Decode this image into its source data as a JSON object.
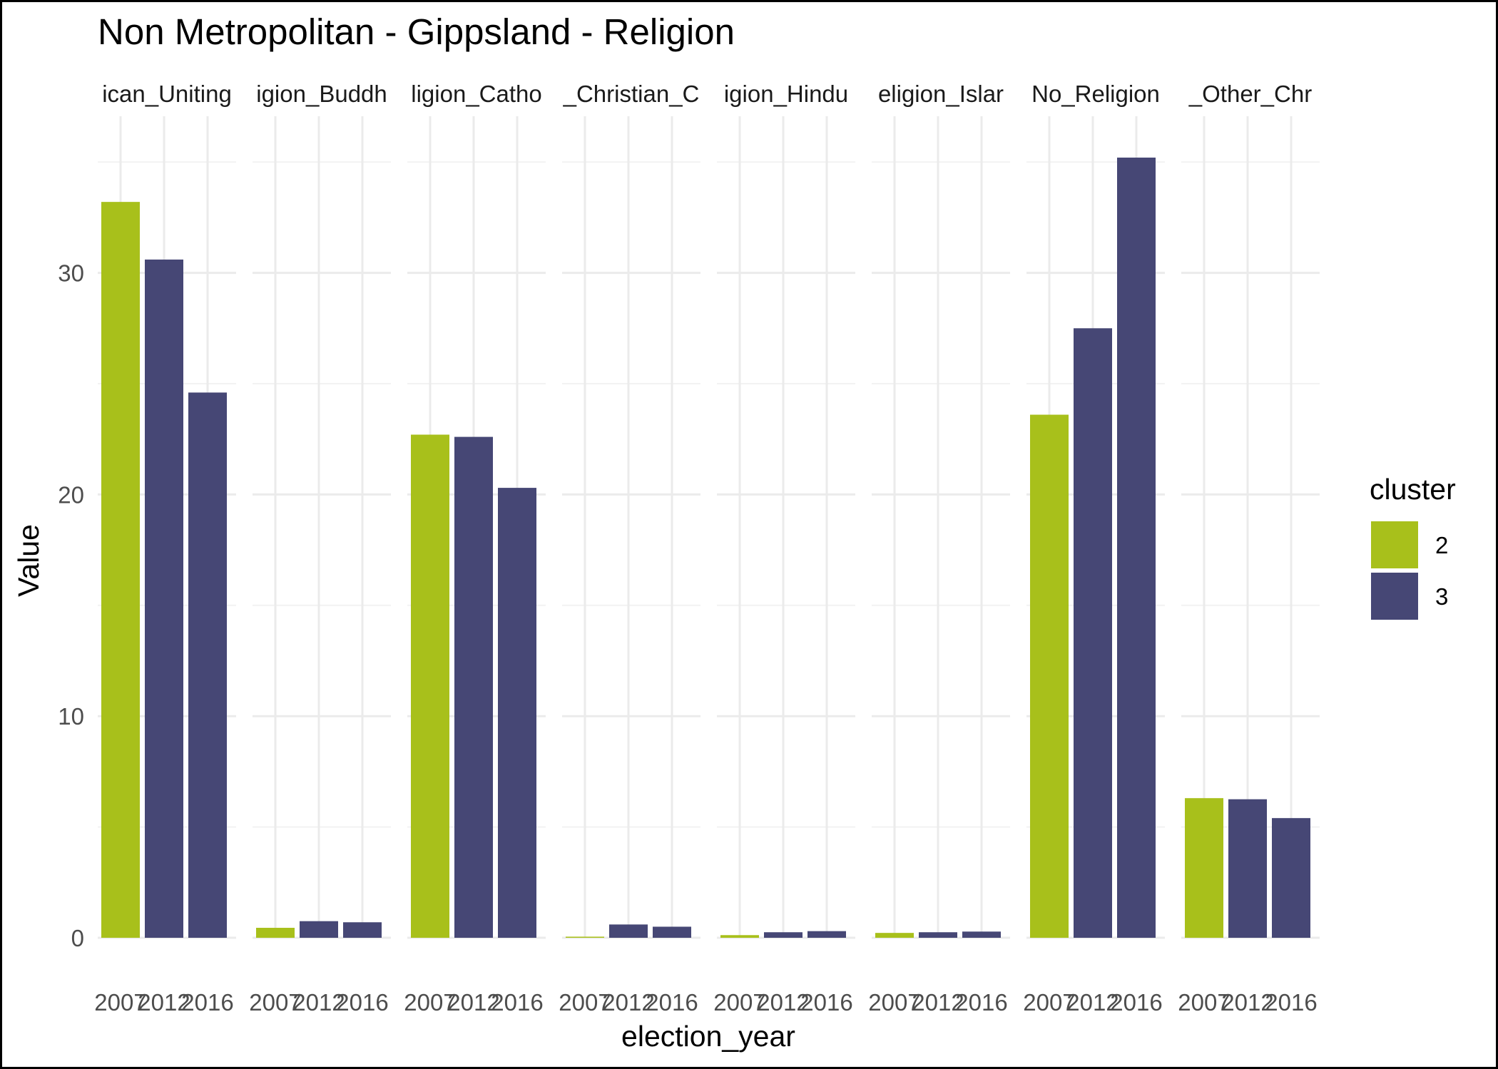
{
  "chart_data": {
    "type": "bar",
    "title": "Non Metropolitan - Gippsland - Religion",
    "xlabel": "election_year",
    "ylabel": "Value",
    "ylim": [
      0,
      36.5
    ],
    "y_ticks": [
      0,
      10,
      20,
      30
    ],
    "grid": true,
    "legend": {
      "title": "cluster",
      "position": "right",
      "entries": [
        {
          "label": "2",
          "color": "#a8c01b"
        },
        {
          "label": "3",
          "color": "#464775"
        }
      ]
    },
    "categories": [
      "2007",
      "2012",
      "2016"
    ],
    "facets": [
      {
        "label": "ican_Uniting",
        "values": [
          33.2,
          30.6,
          24.6
        ],
        "clusters": [
          "2",
          "3",
          "3"
        ]
      },
      {
        "label": "igion_Buddh",
        "values": [
          0.45,
          0.75,
          0.7
        ],
        "clusters": [
          "2",
          "3",
          "3"
        ]
      },
      {
        "label": "ligion_Catho",
        "values": [
          22.7,
          22.6,
          20.3
        ],
        "clusters": [
          "2",
          "3",
          "3"
        ]
      },
      {
        "label": "_Christian_C",
        "values": [
          0.05,
          0.6,
          0.5
        ],
        "clusters": [
          "2",
          "3",
          "3"
        ]
      },
      {
        "label": "igion_Hindu",
        "values": [
          0.12,
          0.25,
          0.3
        ],
        "clusters": [
          "2",
          "3",
          "3"
        ]
      },
      {
        "label": "eligion_Islar",
        "values": [
          0.22,
          0.25,
          0.28
        ],
        "clusters": [
          "2",
          "3",
          "3"
        ]
      },
      {
        "label": "No_Religion",
        "values": [
          23.6,
          27.5,
          35.2
        ],
        "clusters": [
          "2",
          "3",
          "3"
        ]
      },
      {
        "label": "_Other_Chr",
        "values": [
          6.3,
          6.25,
          5.4
        ],
        "clusters": [
          "2",
          "3",
          "3"
        ]
      }
    ]
  }
}
